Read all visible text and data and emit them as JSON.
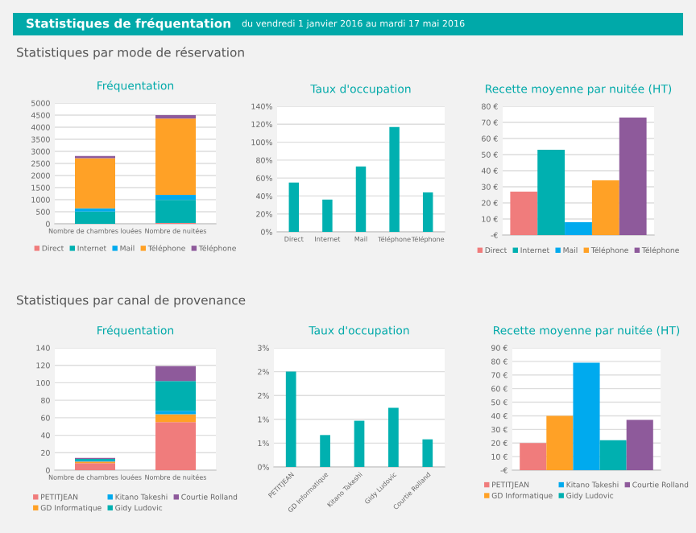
{
  "chart_data": [
    {
      "type": "other",
      "title": "Statistiques de fréquentation",
      "subtitle": "du vendredi 1 janvier 2016 au mardi 17 mai 2016"
    },
    {
      "type": "bar",
      "subtitle": "Statistiques par mode de réservation",
      "title": "Fréquentation",
      "stacked": true,
      "categories": [
        "Nombre de chambres louées",
        "Nombre de nuitées"
      ],
      "series": [
        {
          "name": "Direct",
          "color": "#f07c7c",
          "values": [
            null,
            30
          ]
        },
        {
          "name": "Internet",
          "color": "#00b0b0",
          "values": [
            510,
            960
          ]
        },
        {
          "name": "Mail",
          "color": "#00aaee",
          "values": [
            130,
            210
          ]
        },
        {
          "name": "Téléphone",
          "color": "#ffa126",
          "values": [
            2080,
            3160
          ]
        },
        {
          "name": "Téléphone",
          "color": "#8e5a9b",
          "values": [
            90,
            140
          ]
        }
      ],
      "ylim": [
        0,
        5000
      ],
      "yticks": [
        0,
        500,
        1000,
        1500,
        2000,
        2500,
        3000,
        3500,
        4000,
        4500,
        5000
      ],
      "grid": "y",
      "legend": "bottom"
    },
    {
      "type": "bar",
      "title": "Taux d'occupation",
      "categories": [
        "Direct",
        "Internet",
        "Mail",
        "Téléphone",
        "Téléphone"
      ],
      "values": [
        55,
        36,
        73,
        117,
        44
      ],
      "color": "#00b0b0",
      "ylim": [
        0,
        140
      ],
      "yticks": [
        {
          "value": 0,
          "label": "0%"
        },
        {
          "value": 20,
          "label": "20%"
        },
        {
          "value": 40,
          "label": "40%"
        },
        {
          "value": 60,
          "label": "60%"
        },
        {
          "value": 80,
          "label": "80%"
        },
        {
          "value": 100,
          "label": "100%"
        },
        {
          "value": 120,
          "label": "120%"
        },
        {
          "value": 140,
          "label": "140%"
        }
      ],
      "grid": "y"
    },
    {
      "type": "bar",
      "title": "Recette moyenne par nuitée (HT)",
      "categories": [
        null
      ],
      "series": [
        {
          "name": "Direct",
          "color": "#f07c7c",
          "values": [
            27
          ]
        },
        {
          "name": "Internet",
          "color": "#00b0b0",
          "values": [
            53
          ]
        },
        {
          "name": "Mail",
          "color": "#00aaee",
          "values": [
            8
          ]
        },
        {
          "name": "Téléphone",
          "color": "#ffa126",
          "values": [
            34
          ]
        },
        {
          "name": "Téléphone",
          "color": "#8e5a9b",
          "values": [
            73
          ]
        }
      ],
      "ylim": [
        0,
        80
      ],
      "yticks": [
        {
          "value": 0,
          "label": "-€"
        },
        {
          "value": 10,
          "label": "10 €"
        },
        {
          "value": 20,
          "label": "20 €"
        },
        {
          "value": 30,
          "label": "30 €"
        },
        {
          "value": 40,
          "label": "40 €"
        },
        {
          "value": 50,
          "label": "50 €"
        },
        {
          "value": 60,
          "label": "60 €"
        },
        {
          "value": 70,
          "label": "70 €"
        },
        {
          "value": 80,
          "label": "80 €"
        }
      ],
      "grid": "y",
      "legend": "bottom",
      "tick_labels": "y"
    },
    {
      "type": "bar",
      "subtitle": "Statistiques par canal de provenance",
      "title": "Fréquentation",
      "stacked": true,
      "categories": [
        "Nombre de chambres louées",
        "Nombre de nuitées"
      ],
      "series": [
        {
          "name": "PETITJEAN",
          "color": "#f07c7c",
          "values": [
            8,
            55
          ]
        },
        {
          "name": "GD Informatique",
          "color": "#ffa126",
          "values": [
            2,
            9
          ]
        },
        {
          "name": "Kitano Takeshi",
          "color": "#00aaee",
          "values": [
            1,
            4
          ]
        },
        {
          "name": "Gidy Ludovic",
          "color": "#00b0b0",
          "values": [
            2,
            34
          ]
        },
        {
          "name": "Courtie Rolland",
          "color": "#8e5a9b",
          "values": [
            1,
            17
          ]
        }
      ],
      "ylim": [
        0,
        140
      ],
      "yticks": [
        0,
        20,
        40,
        60,
        80,
        100,
        120,
        140
      ],
      "grid": "y",
      "legend": "bottom"
    },
    {
      "type": "bar",
      "title": "Taux d'occupation",
      "categories": [
        "PETITJEAN",
        "GD Informatique",
        "Kitano Takeshi",
        "Gidy Ludovic",
        "Courtie Rolland"
      ],
      "values": [
        2.0,
        0.67,
        0.97,
        1.24,
        0.58
      ],
      "color": "#00b0b0",
      "ylim": [
        0,
        2.5
      ],
      "yticks": [
        {
          "value": 0,
          "label": "0%"
        },
        {
          "value": 0.5,
          "label": "1%"
        },
        {
          "value": 1.0,
          "label": "1%"
        },
        {
          "value": 1.5,
          "label": "2%"
        },
        {
          "value": 2.0,
          "label": "2%"
        },
        {
          "value": 2.5,
          "label": "3%"
        }
      ],
      "grid": "y"
    },
    {
      "type": "bar",
      "title": "Recette moyenne par nuitée (HT)",
      "categories": [
        null
      ],
      "series": [
        {
          "name": "PETITJEAN",
          "color": "#f07c7c",
          "values": [
            20
          ]
        },
        {
          "name": "GD Informatique",
          "color": "#ffa126",
          "values": [
            40
          ]
        },
        {
          "name": "Kitano Takeshi",
          "color": "#00aaee",
          "values": [
            79
          ]
        },
        {
          "name": "Gidy Ludovic",
          "color": "#00b0b0",
          "values": [
            22
          ]
        },
        {
          "name": "Courtie Rolland",
          "color": "#8e5a9b",
          "values": [
            37
          ]
        }
      ],
      "ylim": [
        0,
        90
      ],
      "yticks": [
        {
          "value": 0,
          "label": "-€"
        },
        {
          "value": 10,
          "label": "10 €"
        },
        {
          "value": 20,
          "label": "20 €"
        },
        {
          "value": 30,
          "label": "30 €"
        },
        {
          "value": 40,
          "label": "40 €"
        },
        {
          "value": 50,
          "label": "50 €"
        },
        {
          "value": 60,
          "label": "60 €"
        },
        {
          "value": 70,
          "label": "70 €"
        },
        {
          "value": 80,
          "label": "80 €"
        },
        {
          "value": 90,
          "label": "90 €"
        }
      ],
      "grid": "y",
      "legend": "bottom",
      "tick_labels": "y"
    }
  ]
}
